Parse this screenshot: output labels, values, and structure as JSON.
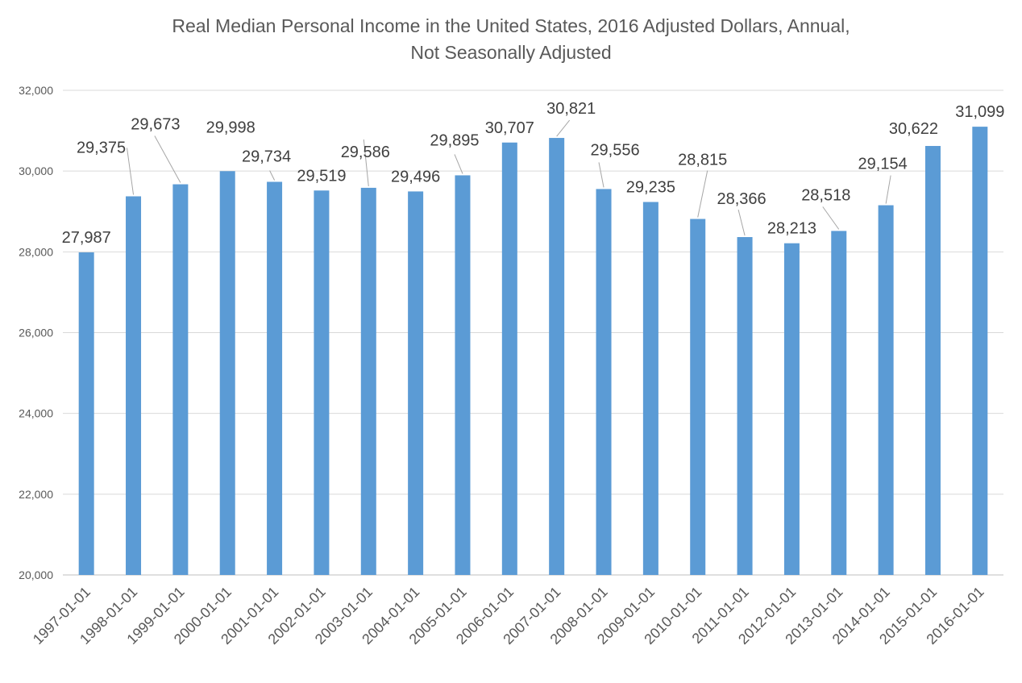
{
  "chart_data": {
    "type": "bar",
    "title_lines": [
      "Real Median Personal Income in the United States, 2016 Adjusted Dollars, Annual,",
      "Not Seasonally Adjusted"
    ],
    "xlabel": "",
    "ylabel": "",
    "ylim": [
      20000,
      32000
    ],
    "ytick_values": [
      20000,
      22000,
      24000,
      26000,
      28000,
      30000,
      32000
    ],
    "ytick_labels": [
      "20,000",
      "22,000",
      "24,000",
      "26,000",
      "28,000",
      "30,000",
      "32,000"
    ],
    "grid": true,
    "legend": "none",
    "bar_color": "#5b9bd5",
    "gridline_color": "#d9d9d9",
    "categories": [
      "1997-01-01",
      "1998-01-01",
      "1999-01-01",
      "2000-01-01",
      "2001-01-01",
      "2002-01-01",
      "2003-01-01",
      "2004-01-01",
      "2005-01-01",
      "2006-01-01",
      "2007-01-01",
      "2008-01-01",
      "2009-01-01",
      "2010-01-01",
      "2011-01-01",
      "2012-01-01",
      "2013-01-01",
      "2014-01-01",
      "2015-01-01",
      "2016-01-01"
    ],
    "values": [
      27987,
      29375,
      29673,
      29998,
      29734,
      29519,
      29586,
      29496,
      29895,
      30707,
      30821,
      29556,
      29235,
      28815,
      28366,
      28213,
      28518,
      29154,
      30622,
      31099
    ],
    "data_labels": [
      "27,987",
      "29,375",
      "29,673",
      "29,998",
      "29,734",
      "29,519",
      "29,586",
      "29,496",
      "29,895",
      "30,707",
      "30,821",
      "29,556",
      "29,235",
      "28,815",
      "28,366",
      "28,213",
      "28,518",
      "29,154",
      "30,622",
      "31,099"
    ]
  }
}
